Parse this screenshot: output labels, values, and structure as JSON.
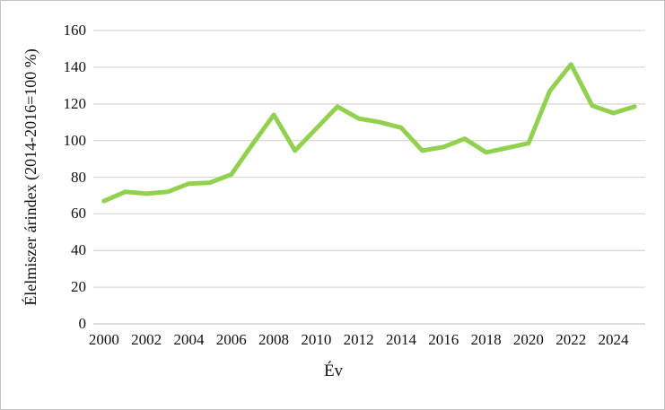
{
  "chart_data": {
    "type": "line",
    "title": "",
    "xlabel": "Év",
    "ylabel": "Élelmiszer árindex (2014-2016=100 %)",
    "x": [
      2000,
      2001,
      2002,
      2003,
      2004,
      2005,
      2006,
      2007,
      2008,
      2009,
      2010,
      2011,
      2012,
      2013,
      2014,
      2015,
      2016,
      2017,
      2018,
      2019,
      2020,
      2021,
      2022,
      2023,
      2024,
      2025
    ],
    "series": [
      {
        "name": "Élelmiszer árindex",
        "values": [
          67,
          72,
          71,
          72,
          76.5,
          77,
          81.5,
          98,
          114,
          94.5,
          106.5,
          118.5,
          112,
          110,
          107,
          94.5,
          96.5,
          101,
          93.5,
          96,
          98.5,
          127,
          141.5,
          119,
          115,
          118.5
        ]
      }
    ],
    "ylim": [
      0,
      160
    ],
    "ytick_step": 20,
    "ytick_labels": [
      "0",
      "20",
      "40",
      "60",
      "80",
      "100",
      "120",
      "140",
      "160"
    ],
    "xtick_labels": [
      "2000",
      "2002",
      "2004",
      "2006",
      "2008",
      "2010",
      "2012",
      "2014",
      "2016",
      "2018",
      "2020",
      "2022",
      "2024"
    ],
    "grid": "horizontal",
    "legend": "none",
    "line_color": "#92d050",
    "gridline_color": "#d9d9d9",
    "axis_line_color": "#c9c9c9",
    "text_color": "#111111",
    "background": "#ffffff",
    "border_color": "#c3c3c3"
  }
}
